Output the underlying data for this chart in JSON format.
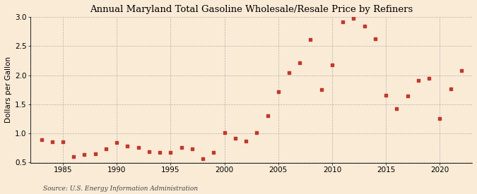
{
  "title": "Annual Maryland Total Gasoline Wholesale/Resale Price by Refiners",
  "ylabel": "Dollars per Gallon",
  "source": "Source: U.S. Energy Information Administration",
  "background_color": "#faebd7",
  "marker_color": "#c0392b",
  "years": [
    1983,
    1984,
    1985,
    1986,
    1987,
    1988,
    1989,
    1990,
    1991,
    1992,
    1993,
    1994,
    1995,
    1996,
    1997,
    1998,
    1999,
    2000,
    2001,
    2002,
    2003,
    2004,
    2005,
    2006,
    2007,
    2008,
    2009,
    2010,
    2011,
    2012,
    2013,
    2014,
    2015,
    2016,
    2017,
    2018,
    2019,
    2020,
    2021,
    2022
  ],
  "values": [
    0.89,
    0.86,
    0.86,
    0.6,
    0.64,
    0.65,
    0.74,
    0.85,
    0.79,
    0.76,
    0.69,
    0.68,
    0.68,
    0.76,
    0.73,
    0.57,
    0.68,
    1.01,
    0.92,
    0.87,
    1.02,
    1.3,
    1.72,
    2.04,
    2.21,
    2.61,
    1.75,
    2.17,
    2.91,
    2.97,
    2.84,
    2.62,
    1.65,
    1.43,
    1.64,
    1.91,
    1.94,
    1.26,
    1.76,
    2.08
  ],
  "xlim": [
    1982,
    2023
  ],
  "ylim": [
    0.5,
    3.0
  ],
  "yticks": [
    0.5,
    1.0,
    1.5,
    2.0,
    2.5,
    3.0
  ],
  "xticks": [
    1985,
    1990,
    1995,
    2000,
    2005,
    2010,
    2015,
    2020
  ],
  "title_fontsize": 9.5,
  "label_fontsize": 7.5,
  "tick_fontsize": 7.5,
  "source_fontsize": 6.5
}
